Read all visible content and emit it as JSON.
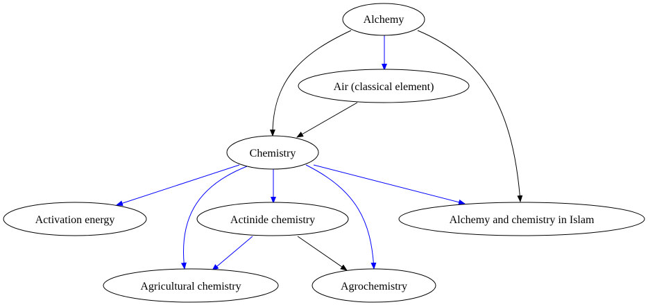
{
  "diagram": {
    "colors": {
      "black_edge": "#000000",
      "blue_edge": "#0000ff"
    },
    "nodes": {
      "alchemy": "Alchemy",
      "air": "Air (classical element)",
      "chemistry": "Chemistry",
      "activation": "Activation energy",
      "actinide": "Actinide chemistry",
      "islam": "Alchemy and chemistry in Islam",
      "agricultural": "Agricultural chemistry",
      "agrochemistry": "Agrochemistry"
    },
    "edges": [
      {
        "from": "alchemy",
        "to": "air",
        "color": "blue"
      },
      {
        "from": "alchemy",
        "to": "chemistry",
        "color": "black"
      },
      {
        "from": "alchemy",
        "to": "islam",
        "color": "black"
      },
      {
        "from": "air",
        "to": "chemistry",
        "color": "black"
      },
      {
        "from": "chemistry",
        "to": "activation",
        "color": "blue"
      },
      {
        "from": "chemistry",
        "to": "actinide",
        "color": "blue"
      },
      {
        "from": "chemistry",
        "to": "islam",
        "color": "blue"
      },
      {
        "from": "chemistry",
        "to": "agricultural",
        "color": "blue"
      },
      {
        "from": "chemistry",
        "to": "agrochemistry",
        "color": "blue"
      },
      {
        "from": "actinide",
        "to": "agricultural",
        "color": "blue"
      },
      {
        "from": "actinide",
        "to": "agrochemistry",
        "color": "black"
      }
    ]
  }
}
